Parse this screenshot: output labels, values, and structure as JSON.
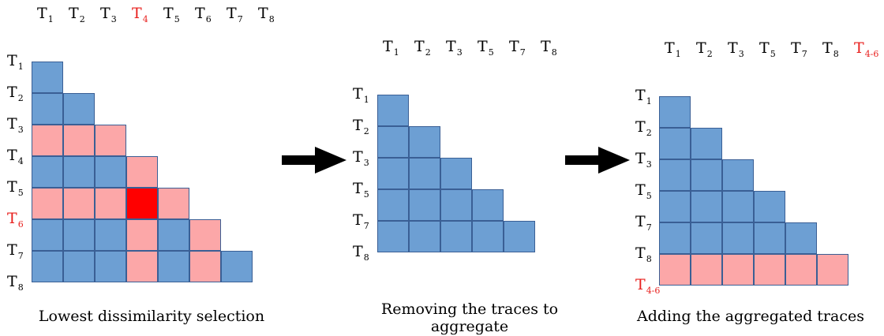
{
  "colors": {
    "blue": "#6d9fd3",
    "pink": "#fca7a8",
    "red": "#ff0000",
    "highlight_text": "#e8201e"
  },
  "panels": [
    {
      "name": "lowest-dissimilarity-panel",
      "caption": "Lowest dissimilarity selection",
      "col_labels": [
        {
          "main": "T",
          "sub": "1",
          "hl": false
        },
        {
          "main": "T",
          "sub": "2",
          "hl": false
        },
        {
          "main": "T",
          "sub": "3",
          "hl": false
        },
        {
          "main": "T",
          "sub": "4",
          "hl": true
        },
        {
          "main": "T",
          "sub": "5",
          "hl": false
        },
        {
          "main": "T",
          "sub": "6",
          "hl": false
        },
        {
          "main": "T",
          "sub": "7",
          "hl": false
        },
        {
          "main": "T",
          "sub": "8",
          "hl": false
        }
      ],
      "row_labels": [
        {
          "main": "T",
          "sub": "1",
          "hl": false
        },
        {
          "main": "T",
          "sub": "2",
          "hl": false
        },
        {
          "main": "T",
          "sub": "3",
          "hl": false
        },
        {
          "main": "T",
          "sub": "4",
          "hl": false
        },
        {
          "main": "T",
          "sub": "5",
          "hl": false
        },
        {
          "main": "T",
          "sub": "6",
          "hl": true
        },
        {
          "main": "T",
          "sub": "7",
          "hl": false
        },
        {
          "main": "T",
          "sub": "8",
          "hl": false
        }
      ],
      "rows": [
        [],
        [
          "blue"
        ],
        [
          "blue",
          "blue"
        ],
        [
          "pink",
          "pink",
          "pink"
        ],
        [
          "blue",
          "blue",
          "blue",
          "pink"
        ],
        [
          "pink",
          "pink",
          "pink",
          "red",
          "pink"
        ],
        [
          "blue",
          "blue",
          "blue",
          "pink",
          "blue",
          "pink"
        ],
        [
          "blue",
          "blue",
          "blue",
          "pink",
          "blue",
          "pink",
          "blue"
        ]
      ]
    },
    {
      "name": "removing-traces-panel",
      "caption": "Removing the traces to aggregate",
      "col_labels": [
        {
          "main": "T",
          "sub": "1",
          "hl": false
        },
        {
          "main": "T",
          "sub": "2",
          "hl": false
        },
        {
          "main": "T",
          "sub": "3",
          "hl": false
        },
        {
          "main": "T",
          "sub": "5",
          "hl": false
        },
        {
          "main": "T",
          "sub": "7",
          "hl": false
        },
        {
          "main": "T",
          "sub": "8",
          "hl": false
        }
      ],
      "row_labels": [
        {
          "main": "T",
          "sub": "1",
          "hl": false
        },
        {
          "main": "T",
          "sub": "2",
          "hl": false
        },
        {
          "main": "T",
          "sub": "3",
          "hl": false
        },
        {
          "main": "T",
          "sub": "5",
          "hl": false
        },
        {
          "main": "T",
          "sub": "7",
          "hl": false
        },
        {
          "main": "T",
          "sub": "8",
          "hl": false
        }
      ],
      "rows": [
        [],
        [
          "blue"
        ],
        [
          "blue",
          "blue"
        ],
        [
          "blue",
          "blue",
          "blue"
        ],
        [
          "blue",
          "blue",
          "blue",
          "blue"
        ],
        [
          "blue",
          "blue",
          "blue",
          "blue",
          "blue"
        ]
      ]
    },
    {
      "name": "adding-aggregated-panel",
      "caption": "Adding the aggregated traces",
      "col_labels": [
        {
          "main": "T",
          "sub": "1",
          "hl": false
        },
        {
          "main": "T",
          "sub": "2",
          "hl": false
        },
        {
          "main": "T",
          "sub": "3",
          "hl": false
        },
        {
          "main": "T",
          "sub": "5",
          "hl": false
        },
        {
          "main": "T",
          "sub": "7",
          "hl": false
        },
        {
          "main": "T",
          "sub": "8",
          "hl": false
        },
        {
          "main": "T",
          "sub": "4-6",
          "hl": true
        }
      ],
      "row_labels": [
        {
          "main": "T",
          "sub": "1",
          "hl": false
        },
        {
          "main": "T",
          "sub": "2",
          "hl": false
        },
        {
          "main": "T",
          "sub": "3",
          "hl": false
        },
        {
          "main": "T",
          "sub": "5",
          "hl": false
        },
        {
          "main": "T",
          "sub": "7",
          "hl": false
        },
        {
          "main": "T",
          "sub": "8",
          "hl": false
        },
        {
          "main": "T",
          "sub": "4-6",
          "hl": true
        }
      ],
      "rows": [
        [],
        [
          "blue"
        ],
        [
          "blue",
          "blue"
        ],
        [
          "blue",
          "blue",
          "blue"
        ],
        [
          "blue",
          "blue",
          "blue",
          "blue"
        ],
        [
          "blue",
          "blue",
          "blue",
          "blue",
          "blue"
        ],
        [
          "pink",
          "pink",
          "pink",
          "pink",
          "pink",
          "pink"
        ]
      ]
    }
  ]
}
